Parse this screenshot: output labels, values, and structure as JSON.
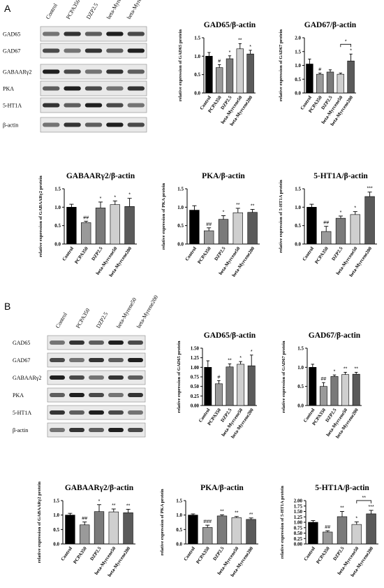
{
  "panels": [
    {
      "letter": "A",
      "blot": {
        "lane_labels": [
          "Control",
          "PCPA350",
          "DZP2.5",
          "beta-Myrene50",
          "beta-Myrene200"
        ],
        "row_labels": [
          "GAD65",
          "GAD67",
          "GABAARγ2",
          "PKA",
          "5-HT1A",
          "β-actin"
        ]
      }
    },
    {
      "letter": "B",
      "blot": {
        "lane_labels": [
          "Control",
          "PCPA350",
          "DZP2.5",
          "beta-Myrene50",
          "beta-Myrene200"
        ],
        "row_labels": [
          "GAD65",
          "GAD67",
          "GABAARγ2",
          "PKA",
          "5-HT1A",
          "β-actin"
        ]
      }
    }
  ],
  "colors": [
    "#000000",
    "#9a9a9a",
    "#7a7a7a",
    "#cfcfcf",
    "#5a5a5a"
  ],
  "chart_data": [
    {
      "type": "bar",
      "panel": "A",
      "title": "GAD65/β-actin",
      "ylabel": "relative expression of GAD65 protein",
      "categories": [
        "Control",
        "PCPA350",
        "DZP2.5",
        "beta-Myrcene50",
        "beta-Myrcene200"
      ],
      "values": [
        1.0,
        0.69,
        0.93,
        1.2,
        1.06
      ],
      "errors": [
        0.1,
        0.08,
        0.08,
        0.14,
        0.1
      ],
      "sig": [
        "",
        "#",
        "*",
        "**",
        "*"
      ],
      "yticks": [
        "0.0",
        "0.5",
        "1.0",
        "1.5"
      ],
      "ylim": [
        0,
        1.5
      ]
    },
    {
      "type": "bar",
      "panel": "A",
      "title": "GAD67/β-actin",
      "ylabel": "relative expression of GAD67 protein",
      "categories": [
        "Control",
        "PCPA350",
        "DZP2.5",
        "beta-Myrcene50",
        "beta-Myrcene200"
      ],
      "values": [
        1.05,
        0.68,
        0.76,
        0.68,
        1.16
      ],
      "errors": [
        0.18,
        0.04,
        0.08,
        0.04,
        0.25
      ],
      "sig": [
        "",
        "#",
        "",
        "",
        "*"
      ],
      "bracket": {
        "from": 3,
        "to": 4,
        "label": "*"
      },
      "yticks": [
        "0.0",
        "0.5",
        "1.0",
        "1.5",
        "2.0"
      ],
      "ylim": [
        0,
        2.0
      ]
    },
    {
      "type": "bar",
      "panel": "A",
      "title": "GABAARγ2/β-actin",
      "ylabel": "relative expression of GABAARγ2 protein",
      "categories": [
        "Control",
        "PCPA350",
        "DZP2.5",
        "beta-Myrcene50",
        "beta-Myrcene200"
      ],
      "values": [
        1.0,
        0.58,
        0.98,
        1.07,
        1.02
      ],
      "errors": [
        0.08,
        0.04,
        0.16,
        0.1,
        0.22
      ],
      "sig": [
        "",
        "##",
        "*",
        "*",
        "*"
      ],
      "yticks": [
        "0.0",
        "0.5",
        "1.0",
        "1.5"
      ],
      "ylim": [
        0,
        1.5
      ]
    },
    {
      "type": "bar",
      "panel": "A",
      "title": "PKA/β-actin",
      "ylabel": "relative expression of PKA protein",
      "categories": [
        "Control",
        "PCPA350",
        "DZP2.5",
        "beta-Myrcene50",
        "beta-Myrcene200"
      ],
      "values": [
        0.92,
        0.36,
        0.67,
        0.85,
        0.86
      ],
      "errors": [
        0.12,
        0.08,
        0.1,
        0.12,
        0.08
      ],
      "sig": [
        "",
        "##",
        "*",
        "**",
        "**"
      ],
      "yticks": [
        "0.0",
        "0.5",
        "1.0",
        "1.5"
      ],
      "ylim": [
        0,
        1.5
      ]
    },
    {
      "type": "bar",
      "panel": "A",
      "title": "5-HT1A/β-actin",
      "ylabel": "relative expression of 5-HT1A protein",
      "categories": [
        "Control",
        "PCPA350",
        "DZP2.5",
        "beta-Myrcene50",
        "beta-Myrcene200"
      ],
      "values": [
        1.0,
        0.34,
        0.7,
        0.8,
        1.29
      ],
      "errors": [
        0.08,
        0.14,
        0.06,
        0.08,
        0.12
      ],
      "sig": [
        "",
        "##",
        "*",
        "*",
        "***"
      ],
      "yticks": [
        "0.0",
        "0.5",
        "1.0",
        "1.5"
      ],
      "ylim": [
        0,
        1.5
      ]
    },
    {
      "type": "bar",
      "panel": "B",
      "title": "GAD65/β-actin",
      "ylabel": "relative expression of GAD65 protein",
      "categories": [
        "Control",
        "PCPA350",
        "DZP2.5",
        "beta-Myrcene50",
        "beta-Myrcene200"
      ],
      "values": [
        1.0,
        0.57,
        1.01,
        1.08,
        1.04
      ],
      "errors": [
        0.17,
        0.08,
        0.08,
        0.07,
        0.28
      ],
      "sig": [
        "",
        "#",
        "**",
        "*",
        "*"
      ],
      "yticks": [
        "0.00",
        "0.25",
        "0.50",
        "0.75",
        "1.00",
        "1.25",
        "1.50"
      ],
      "ylim": [
        0,
        1.5
      ]
    },
    {
      "type": "bar",
      "panel": "B",
      "title": "GAD67/β-actin",
      "ylabel": "relative expression of GAD67 protein",
      "categories": [
        "Control",
        "PCPA350",
        "DZP2.5",
        "beta-Myrcene50",
        "beta-Myrcene200"
      ],
      "values": [
        1.0,
        0.5,
        0.76,
        0.81,
        0.82
      ],
      "errors": [
        0.08,
        0.1,
        0.04,
        0.06,
        0.05
      ],
      "sig": [
        "",
        "##",
        "*",
        "**",
        "**"
      ],
      "yticks": [
        "0.0",
        "0.5",
        "1.0",
        "1.5"
      ],
      "ylim": [
        0,
        1.5
      ]
    },
    {
      "type": "bar",
      "panel": "B",
      "title": "GABAARγ2/β-actin",
      "ylabel": "relative expression of GABAARγ2 protein",
      "categories": [
        "Control",
        "PCPA350",
        "DZP2.5",
        "beta-Myrcene50",
        "beta-Myrcene200"
      ],
      "values": [
        1.0,
        0.66,
        1.12,
        1.11,
        1.08
      ],
      "errors": [
        0.06,
        0.1,
        0.24,
        0.1,
        0.12
      ],
      "sig": [
        "",
        "##",
        "*",
        "**",
        "**"
      ],
      "yticks": [
        "0.0",
        "0.5",
        "1.0",
        "1.5"
      ],
      "ylim": [
        0,
        1.5
      ]
    },
    {
      "type": "bar",
      "panel": "B",
      "title": "PKA/β-actin",
      "ylabel": "relative expression of PKA protein",
      "categories": [
        "Control",
        "PCPA350",
        "DZP2.5",
        "beta-Myrcene50",
        "beta-Myrcene200"
      ],
      "values": [
        1.0,
        0.57,
        0.97,
        0.91,
        0.85
      ],
      "errors": [
        0.04,
        0.08,
        0.04,
        0.04,
        0.05
      ],
      "sig": [
        "",
        "###",
        "**",
        "**",
        "**"
      ],
      "yticks": [
        "0.0",
        "0.5",
        "1.0",
        "1.5"
      ],
      "ylim": [
        0,
        1.5
      ]
    },
    {
      "type": "bar",
      "panel": "B",
      "title": "5-HT1A/β-actin",
      "ylabel": "relative expression of 5-HT1A protein",
      "categories": [
        "Control",
        "PCPA350",
        "DZP2.5",
        "beta-Myrcene50",
        "beta-Myrcene200"
      ],
      "values": [
        1.0,
        0.55,
        1.26,
        0.9,
        1.39
      ],
      "errors": [
        0.08,
        0.06,
        0.24,
        0.12,
        0.16
      ],
      "sig": [
        "",
        "##",
        "**",
        "*",
        "***"
      ],
      "bracket": {
        "from": 3,
        "to": 4,
        "label": "**"
      },
      "yticks": [
        "0.00",
        "0.25",
        "0.50",
        "0.75",
        "1.00",
        "1.25",
        "1.50",
        "1.75",
        "2.00"
      ],
      "ylim": [
        0,
        2.0
      ]
    }
  ]
}
